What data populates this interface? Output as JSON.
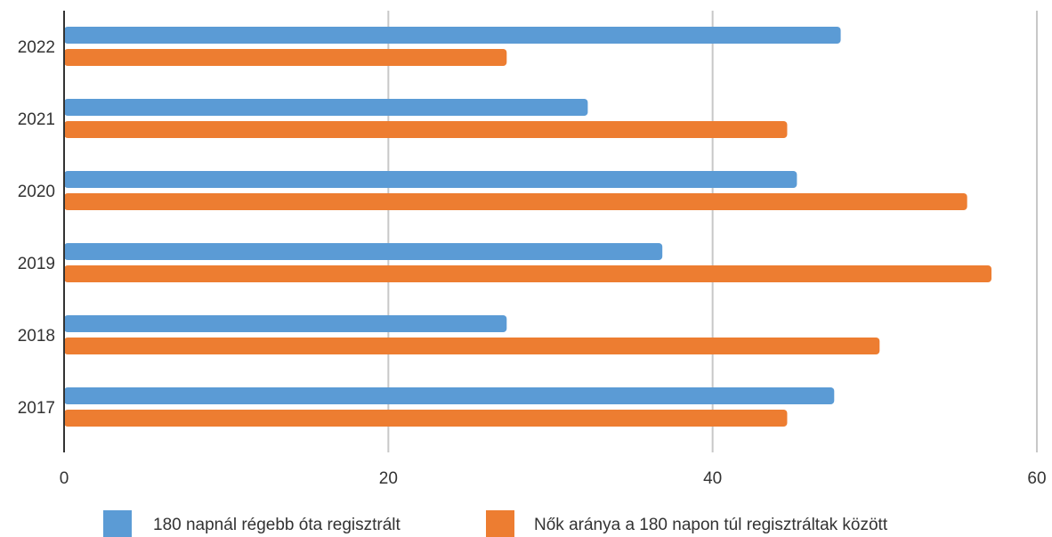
{
  "chart_data": {
    "type": "bar",
    "orientation": "horizontal",
    "categories": [
      "2022",
      "2021",
      "2020",
      "2019",
      "2018",
      "2017"
    ],
    "series": [
      {
        "name": "180 napnál régebb óta regisztrált",
        "color": "#5b9bd5",
        "values": [
          47.9,
          32.3,
          45.2,
          36.9,
          27.3,
          47.5
        ]
      },
      {
        "name": "Nők aránya a 180 napon túl regisztráltak között",
        "color": "#ed7d31",
        "values": [
          27.3,
          44.6,
          55.7,
          57.2,
          50.3,
          44.6
        ]
      }
    ],
    "x_ticks": [
      "0",
      "20",
      "40",
      "60"
    ],
    "xlim": [
      0,
      60
    ],
    "grid": "vertical",
    "legend": "bottom",
    "title": "",
    "xlabel": "",
    "ylabel": ""
  }
}
